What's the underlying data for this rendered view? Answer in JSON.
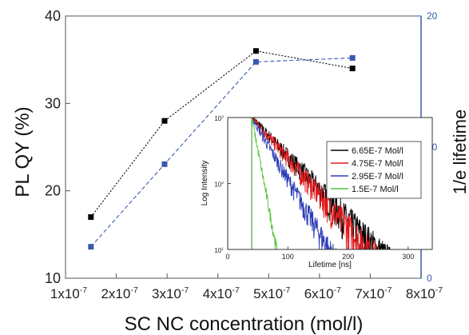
{
  "chart_data": [
    {
      "type": "scatter",
      "title": "",
      "xlabel": "SC NC concentration (mol/l)",
      "ylabel": "PL QY (%)",
      "y2label": "1/e lifetime",
      "xlim": [
        1e-07,
        8e-07
      ],
      "ylim": [
        10,
        40
      ],
      "y2lim": [
        0,
        20
      ],
      "x_ticks": [
        {
          "v": 1e-07,
          "m": "1x10",
          "e": "-7"
        },
        {
          "v": 2e-07,
          "m": "2x10",
          "e": "-7"
        },
        {
          "v": 3e-07,
          "m": "3x10",
          "e": "-7"
        },
        {
          "v": 4e-07,
          "m": "4x10",
          "e": "-7"
        },
        {
          "v": 5e-07,
          "m": "5x10",
          "e": "-7"
        },
        {
          "v": 6e-07,
          "m": "6x10",
          "e": "-7"
        },
        {
          "v": 7e-07,
          "m": "7x10",
          "e": "-7"
        },
        {
          "v": 8e-07,
          "m": "8x10",
          "e": "-7"
        }
      ],
      "y_ticks": [
        "10",
        "20",
        "30",
        "40"
      ],
      "y2_ticks": [
        "0",
        "10",
        "20"
      ],
      "grid": false,
      "series": [
        {
          "axis": "left",
          "color": "#000000",
          "line": "dotted",
          "x": [
            1.5e-07,
            2.95e-07,
            4.75e-07,
            6.65e-07
          ],
          "y": [
            17,
            28,
            36,
            34
          ]
        },
        {
          "axis": "right",
          "color": "#3a58b0",
          "line": "dashed",
          "x": [
            1.5e-07,
            2.95e-07,
            4.75e-07,
            6.65e-07
          ],
          "y": [
            2.4,
            8.7,
            16.5,
            16.8
          ]
        }
      ]
    },
    {
      "type": "line",
      "title": "",
      "xlabel": "Lifetime [ns]",
      "ylabel": "Log Intensity",
      "xlim": [
        0,
        340
      ],
      "ylim": [
        10,
        1000
      ],
      "yscale": "log",
      "x_ticks": [
        "0",
        "100",
        "200",
        "300"
      ],
      "y_ticks": [
        {
          "v": 10,
          "m": "10",
          "e": "1"
        },
        {
          "v": 100,
          "m": "10",
          "e": "2"
        },
        {
          "v": 1000,
          "m": "10",
          "e": "3"
        }
      ],
      "legend_position": "top-right",
      "series": [
        {
          "name": "6.65E-7 Mol/l",
          "color": "#000000",
          "t0": 40,
          "tau": 45,
          "tail": 330
        },
        {
          "name": "4.75E-7 Mol/l",
          "color": "#e41a1c",
          "t0": 40,
          "tau": 42,
          "tail": 315
        },
        {
          "name": "2.95E-7 Mol/l",
          "color": "#2e3fb8",
          "t0": 40,
          "tau": 28,
          "tail": 215
        },
        {
          "name": "1.5E-7 Mol/l",
          "color": "#52c234",
          "t0": 40,
          "tau": 9,
          "tail": 100
        }
      ]
    }
  ]
}
